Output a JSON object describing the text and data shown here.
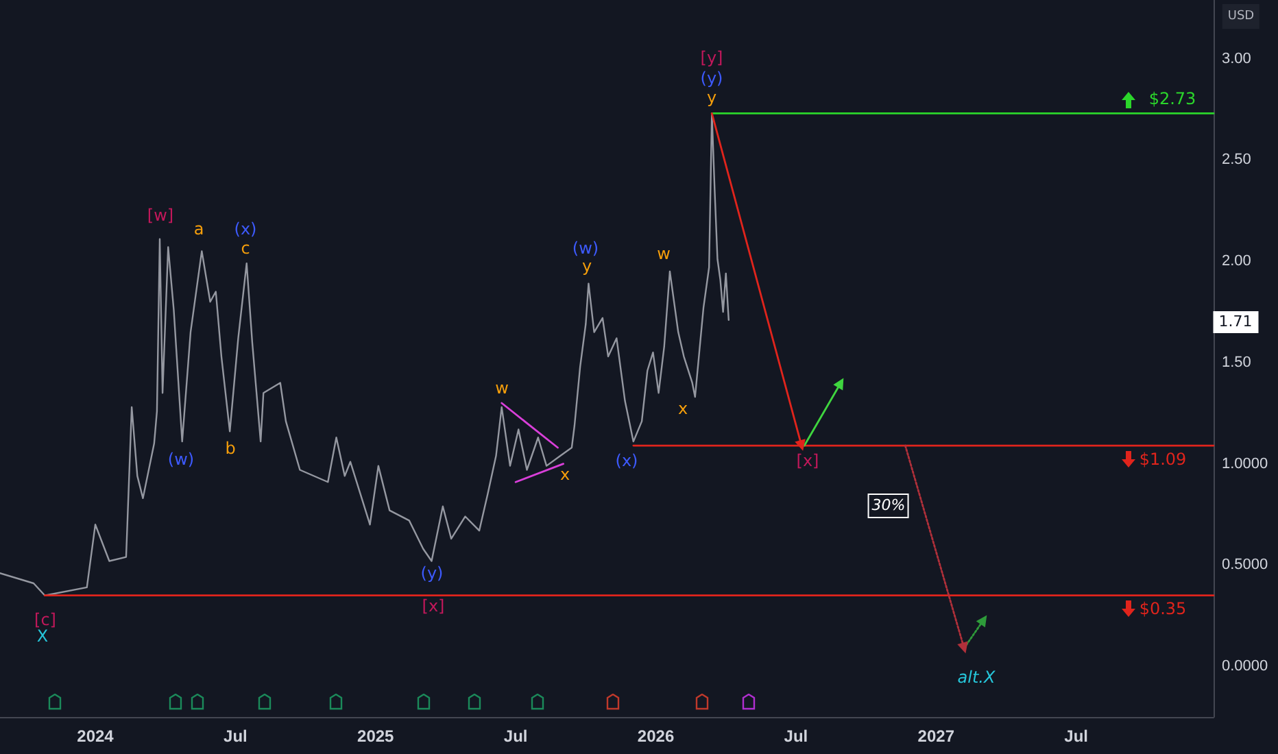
{
  "chart_data": {
    "type": "line",
    "xlim": [
      2023.66,
      2027.99
    ],
    "ylim": [
      -0.25,
      3.29
    ],
    "xticks": [
      {
        "value": 2024,
        "label": "2024"
      },
      {
        "value": 2024.5,
        "label": "Jul"
      },
      {
        "value": 2025,
        "label": "2025"
      },
      {
        "value": 2025.5,
        "label": "Jul"
      },
      {
        "value": 2026,
        "label": "2026"
      },
      {
        "value": 2026.5,
        "label": "Jul"
      },
      {
        "value": 2027,
        "label": "2027"
      },
      {
        "value": 2027.5,
        "label": "Jul"
      }
    ],
    "yticks": [
      {
        "value": 0,
        "label": "0.0000"
      },
      {
        "value": 0.5,
        "label": "0.5000"
      },
      {
        "value": 1,
        "label": "1.0000"
      },
      {
        "value": 1.5,
        "label": "1.50"
      },
      {
        "value": 2,
        "label": "2.00"
      },
      {
        "value": 2.5,
        "label": "2.50"
      },
      {
        "value": 3,
        "label": "3.00"
      }
    ],
    "grid": false,
    "marker": "none",
    "series": [
      {
        "color": "#9598a1",
        "x": [
          2023.66,
          2023.78,
          2023.82,
          2023.97,
          2024.0,
          2024.05,
          2024.11,
          2024.13,
          2024.15,
          2024.17,
          2024.21,
          2024.22,
          2024.23,
          2024.24,
          2024.26,
          2024.28,
          2024.31,
          2024.34,
          2024.38,
          2024.41,
          2024.43,
          2024.45,
          2024.48,
          2024.51,
          2024.54,
          2024.56,
          2024.59,
          2024.6,
          2024.66,
          2024.68,
          2024.73,
          2024.83,
          2024.86,
          2024.89,
          2024.91,
          2024.98,
          2025.01,
          2025.05,
          2025.12,
          2025.17,
          2025.2,
          2025.24,
          2025.27,
          2025.32,
          2025.37,
          2025.4,
          2025.43,
          2025.45,
          2025.48,
          2025.51,
          2025.54,
          2025.58,
          2025.61,
          2025.66,
          2025.7,
          2025.71,
          2025.73,
          2025.75,
          2025.76,
          2025.78,
          2025.81,
          2025.83,
          2025.86,
          2025.89,
          2025.92,
          2025.95,
          2025.97,
          2025.99,
          2026.01,
          2026.03,
          2026.05,
          2026.08,
          2026.1,
          2026.13,
          2026.14,
          2026.17,
          2026.19,
          2026.2,
          2026.21,
          2026.22,
          2026.23,
          2026.24,
          2026.25,
          2026.26
        ],
        "values": [
          0.46,
          0.41,
          0.35,
          0.39,
          0.7,
          0.52,
          0.54,
          1.28,
          0.94,
          0.83,
          1.1,
          1.26,
          2.11,
          1.35,
          2.07,
          1.76,
          1.11,
          1.65,
          2.05,
          1.8,
          1.85,
          1.53,
          1.16,
          1.62,
          1.99,
          1.6,
          1.11,
          1.35,
          1.4,
          1.21,
          0.97,
          0.91,
          1.13,
          0.94,
          1.01,
          0.7,
          0.99,
          0.77,
          0.72,
          0.58,
          0.52,
          0.79,
          0.63,
          0.74,
          0.67,
          0.85,
          1.04,
          1.28,
          0.99,
          1.17,
          0.97,
          1.13,
          0.99,
          1.04,
          1.08,
          1.19,
          1.48,
          1.69,
          1.89,
          1.65,
          1.72,
          1.53,
          1.62,
          1.31,
          1.11,
          1.21,
          1.46,
          1.55,
          1.35,
          1.58,
          1.95,
          1.65,
          1.53,
          1.4,
          1.33,
          1.77,
          1.97,
          2.73,
          2.35,
          2.01,
          1.91,
          1.75,
          1.94,
          1.71
        ]
      },
      {
        "color": "#2bd62b",
        "x": [
          2026.2,
          2027.99
        ],
        "values": [
          2.73,
          2.73
        ]
      },
      {
        "color": "#e0241c",
        "x": [
          2025.92,
          2027.99
        ],
        "values": [
          1.09,
          1.09
        ]
      },
      {
        "color": "#e0241c",
        "x": [
          2023.82,
          2027.99
        ],
        "values": [
          0.35,
          0.35
        ]
      },
      {
        "color": "#e0241c",
        "x": [
          2026.2,
          2026.52
        ],
        "values": [
          2.73,
          1.09
        ],
        "marker": "triangle"
      },
      {
        "color": "#3fd63f",
        "x": [
          2026.53,
          2026.66
        ],
        "values": [
          1.09,
          1.4
        ],
        "marker": "triangle"
      },
      {
        "color": "#b0303a",
        "x": [
          2026.89,
          2027.1
        ],
        "values": [
          1.09,
          0.09
        ],
        "marker": "triangle",
        "line_style": "dotted"
      },
      {
        "color": "#2e9b3a",
        "x": [
          2027.1,
          2027.17
        ],
        "values": [
          0.09,
          0.23
        ],
        "marker": "triangle",
        "line_style": "dotted"
      },
      {
        "color": "#d93fd9",
        "x": [
          2025.45,
          2025.65
        ],
        "values": [
          1.3,
          1.08
        ]
      },
      {
        "color": "#d93fd9",
        "x": [
          2025.5,
          2025.67
        ],
        "values": [
          0.91,
          1.0
        ]
      }
    ],
    "annotations": [
      "USD",
      "[c]",
      "X",
      "[w]",
      "a",
      "(x)",
      "c",
      "(w)",
      "b",
      "w",
      "x",
      "(y)",
      "[x]",
      "(w)",
      "y",
      "(x)",
      "w",
      "x",
      "[y]",
      "(y)",
      "y",
      "[x]",
      "alt.X",
      "30%",
      "$2.73",
      "$1.09",
      "$0.35",
      "1.71"
    ]
  }
}
